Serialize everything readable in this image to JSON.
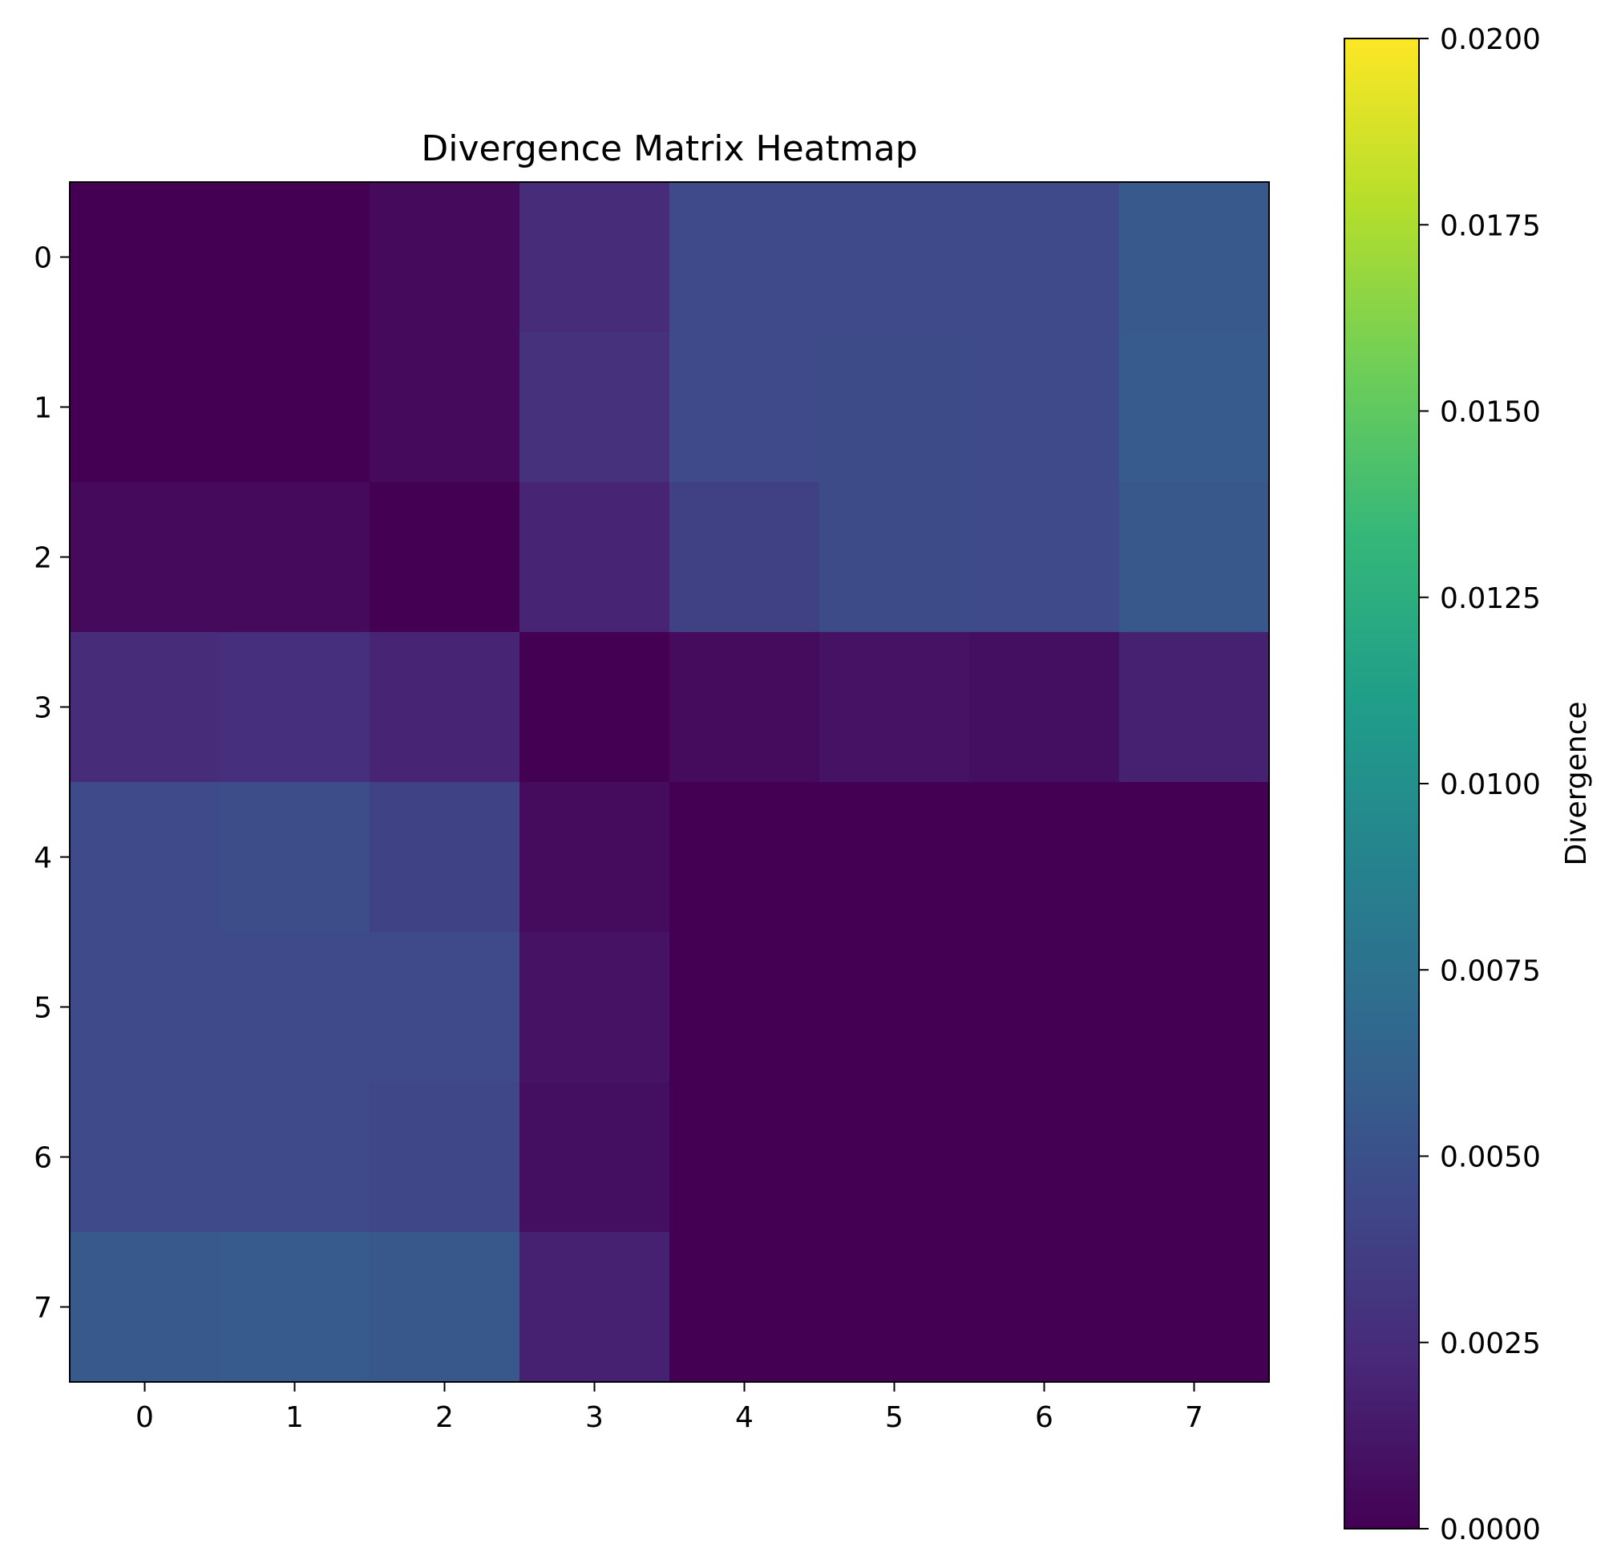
{
  "chart_data": {
    "type": "heatmap",
    "title": "Divergence Matrix Heatmap",
    "xlabel": "",
    "ylabel": "",
    "x_ticks": [
      "0",
      "1",
      "2",
      "3",
      "4",
      "5",
      "6",
      "7"
    ],
    "y_ticks": [
      "0",
      "1",
      "2",
      "3",
      "4",
      "5",
      "6",
      "7"
    ],
    "matrix": [
      [
        0.0,
        0.0,
        0.0005,
        0.0025,
        0.0045,
        0.0045,
        0.0045,
        0.0056
      ],
      [
        0.0,
        0.0,
        0.0005,
        0.0028,
        0.0045,
        0.0046,
        0.0045,
        0.0057
      ],
      [
        0.0005,
        0.0005,
        0.0,
        0.002,
        0.0039,
        0.0046,
        0.0045,
        0.0055
      ],
      [
        0.0025,
        0.0027,
        0.002,
        0.0,
        0.0006,
        0.001,
        0.0008,
        0.0018
      ],
      [
        0.0045,
        0.0047,
        0.004,
        0.0006,
        0.0,
        0.0,
        0.0,
        0.0
      ],
      [
        0.0045,
        0.0045,
        0.0045,
        0.001,
        0.0,
        0.0,
        0.0,
        0.0
      ],
      [
        0.0045,
        0.0045,
        0.0043,
        0.0008,
        0.0,
        0.0,
        0.0,
        0.0
      ],
      [
        0.0056,
        0.0057,
        0.0055,
        0.0018,
        0.0,
        0.0,
        0.0,
        0.0
      ]
    ],
    "colormap": "viridis",
    "colorbar": {
      "label": "Divergence",
      "range": [
        0,
        0.02
      ],
      "ticks": [
        "0.0000",
        "0.0025",
        "0.0050",
        "0.0075",
        "0.0100",
        "0.0125",
        "0.0150",
        "0.0175",
        "0.0200"
      ],
      "tick_values": [
        0,
        0.0025,
        0.005,
        0.0075,
        0.01,
        0.0125,
        0.015,
        0.0175,
        0.02
      ]
    },
    "grid": false
  },
  "colors": {
    "viridis_stops": [
      "#440154",
      "#482878",
      "#3e4989",
      "#31688e",
      "#26828e",
      "#1f9e89",
      "#35b779",
      "#6ece58",
      "#b5de2b",
      "#fde725"
    ]
  }
}
